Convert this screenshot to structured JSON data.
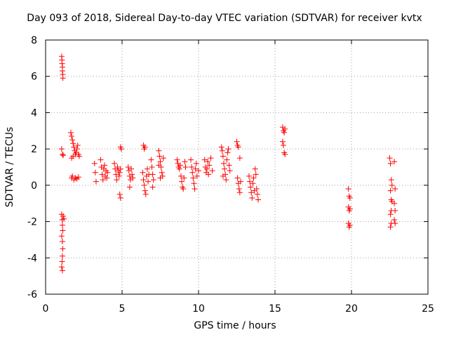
{
  "chart_data": {
    "type": "scatter",
    "title": "Day 093 of 2018, Sidereal Day-to-day VTEC variation (SDTVAR) for receiver kvtx",
    "xlabel": "GPS time / hours",
    "ylabel": "SDTVAR / TECUs",
    "xlim": [
      0,
      25
    ],
    "ylim": [
      -6,
      8
    ],
    "xticks": [
      0,
      5,
      10,
      15,
      20,
      25
    ],
    "yticks": [
      -6,
      -4,
      -2,
      0,
      2,
      4,
      6,
      8
    ],
    "xtick_labels": [
      "0",
      "5",
      "10",
      "15",
      "20",
      "25"
    ],
    "ytick_labels": [
      "-6",
      "-4",
      "-2",
      "0",
      "2",
      "4",
      "6",
      "8"
    ],
    "grid": true,
    "marker": "+",
    "series": [
      {
        "name": "SDTVAR",
        "color": "#ff0000",
        "points": [
          [
            1.05,
            7.1
          ],
          [
            1.07,
            6.9
          ],
          [
            1.08,
            6.7
          ],
          [
            1.1,
            6.5
          ],
          [
            1.1,
            6.3
          ],
          [
            1.12,
            6.1
          ],
          [
            1.13,
            5.9
          ],
          [
            1.05,
            2.0
          ],
          [
            1.1,
            1.7
          ],
          [
            1.15,
            1.65
          ],
          [
            1.05,
            -1.6
          ],
          [
            1.08,
            -1.9
          ],
          [
            1.1,
            -2.2
          ],
          [
            1.12,
            -2.5
          ],
          [
            1.05,
            -2.8
          ],
          [
            1.1,
            -3.1
          ],
          [
            1.12,
            -3.5
          ],
          [
            1.1,
            -3.9
          ],
          [
            1.08,
            -4.2
          ],
          [
            1.05,
            -4.5
          ],
          [
            1.1,
            -4.7
          ],
          [
            1.15,
            -1.7
          ],
          [
            1.2,
            -1.85
          ],
          [
            1.65,
            2.9
          ],
          [
            1.7,
            2.7
          ],
          [
            1.75,
            2.5
          ],
          [
            1.8,
            2.3
          ],
          [
            1.85,
            2.1
          ],
          [
            1.9,
            1.9
          ],
          [
            1.95,
            1.7
          ],
          [
            2.0,
            1.8
          ],
          [
            2.05,
            2.0
          ],
          [
            2.1,
            2.2
          ],
          [
            2.15,
            1.7
          ],
          [
            2.2,
            1.6
          ],
          [
            1.7,
            1.5
          ],
          [
            1.8,
            1.6
          ],
          [
            1.75,
            0.5
          ],
          [
            1.85,
            0.3
          ],
          [
            1.95,
            0.4
          ],
          [
            2.05,
            0.35
          ],
          [
            2.15,
            0.45
          ],
          [
            1.7,
            0.4
          ],
          [
            3.2,
            1.2
          ],
          [
            3.25,
            0.7
          ],
          [
            3.3,
            0.2
          ],
          [
            3.6,
            1.4
          ],
          [
            3.65,
            1.0
          ],
          [
            3.7,
            0.6
          ],
          [
            3.75,
            0.3
          ],
          [
            3.8,
            0.9
          ],
          [
            3.85,
            1.1
          ],
          [
            3.9,
            0.5
          ],
          [
            3.95,
            0.8
          ],
          [
            4.0,
            0.4
          ],
          [
            4.05,
            0.7
          ],
          [
            4.5,
            1.2
          ],
          [
            4.55,
            0.9
          ],
          [
            4.6,
            0.6
          ],
          [
            4.65,
            0.3
          ],
          [
            4.7,
            1.0
          ],
          [
            4.75,
            0.8
          ],
          [
            4.8,
            0.5
          ],
          [
            4.85,
            0.7
          ],
          [
            4.9,
            0.9
          ],
          [
            4.9,
            2.1
          ],
          [
            4.95,
            2.0
          ],
          [
            4.85,
            -0.5
          ],
          [
            4.9,
            -0.7
          ],
          [
            5.4,
            1.0
          ],
          [
            5.45,
            0.8
          ],
          [
            5.5,
            0.5
          ],
          [
            5.55,
            0.3
          ],
          [
            5.6,
            0.9
          ],
          [
            5.65,
            0.6
          ],
          [
            5.7,
            0.4
          ],
          [
            5.5,
            -0.1
          ],
          [
            6.4,
            2.2
          ],
          [
            6.45,
            2.0
          ],
          [
            6.5,
            2.1
          ],
          [
            6.35,
            0.7
          ],
          [
            6.4,
            0.3
          ],
          [
            6.45,
            0.0
          ],
          [
            6.5,
            -0.3
          ],
          [
            6.55,
            -0.5
          ],
          [
            6.6,
            0.5
          ],
          [
            6.65,
            0.9
          ],
          [
            6.7,
            0.2
          ],
          [
            6.75,
            0.6
          ],
          [
            6.9,
            1.4
          ],
          [
            6.95,
            1.0
          ],
          [
            7.0,
            0.6
          ],
          [
            7.05,
            0.3
          ],
          [
            7.0,
            -0.1
          ],
          [
            7.4,
            1.9
          ],
          [
            7.45,
            1.6
          ],
          [
            7.5,
            1.3
          ],
          [
            7.55,
            1.0
          ],
          [
            7.6,
            0.7
          ],
          [
            7.65,
            0.5
          ],
          [
            7.5,
            0.4
          ],
          [
            7.4,
            1.1
          ],
          [
            7.7,
            1.5
          ],
          [
            8.6,
            1.4
          ],
          [
            8.65,
            1.2
          ],
          [
            8.7,
            1.0
          ],
          [
            8.75,
            0.9
          ],
          [
            8.8,
            1.1
          ],
          [
            8.85,
            0.5
          ],
          [
            8.9,
            0.2
          ],
          [
            8.95,
            -0.1
          ],
          [
            9.0,
            -0.2
          ],
          [
            9.05,
            0.4
          ],
          [
            9.1,
            1.3
          ],
          [
            9.15,
            1.0
          ],
          [
            9.5,
            1.4
          ],
          [
            9.55,
            1.0
          ],
          [
            9.6,
            0.7
          ],
          [
            9.65,
            0.4
          ],
          [
            9.7,
            0.1
          ],
          [
            9.75,
            -0.2
          ],
          [
            9.8,
            0.9
          ],
          [
            9.85,
            1.2
          ],
          [
            9.9,
            0.5
          ],
          [
            10.0,
            0.8
          ],
          [
            10.4,
            1.4
          ],
          [
            10.45,
            1.0
          ],
          [
            10.5,
            0.7
          ],
          [
            10.55,
            0.9
          ],
          [
            10.6,
            1.3
          ],
          [
            10.65,
            0.6
          ],
          [
            10.7,
            1.1
          ],
          [
            10.8,
            1.5
          ],
          [
            10.9,
            0.8
          ],
          [
            11.5,
            2.1
          ],
          [
            11.55,
            1.9
          ],
          [
            11.6,
            1.6
          ],
          [
            11.65,
            1.2
          ],
          [
            11.7,
            0.9
          ],
          [
            11.75,
            0.6
          ],
          [
            11.8,
            0.3
          ],
          [
            11.85,
            1.4
          ],
          [
            11.9,
            1.8
          ],
          [
            11.95,
            2.0
          ],
          [
            12.0,
            1.1
          ],
          [
            12.05,
            0.8
          ],
          [
            11.6,
            0.5
          ],
          [
            12.5,
            2.4
          ],
          [
            12.55,
            2.2
          ],
          [
            12.6,
            2.1
          ],
          [
            12.55,
            0.4
          ],
          [
            12.6,
            0.1
          ],
          [
            12.65,
            -0.2
          ],
          [
            12.7,
            -0.4
          ],
          [
            12.75,
            0.2
          ],
          [
            12.7,
            1.5
          ],
          [
            13.3,
            0.5
          ],
          [
            13.35,
            0.2
          ],
          [
            13.4,
            -0.1
          ],
          [
            13.45,
            -0.4
          ],
          [
            13.5,
            -0.7
          ],
          [
            13.55,
            0.1
          ],
          [
            13.6,
            0.4
          ],
          [
            13.65,
            -0.3
          ],
          [
            13.7,
            0.9
          ],
          [
            13.75,
            0.6
          ],
          [
            13.8,
            -0.2
          ],
          [
            13.85,
            -0.5
          ],
          [
            13.9,
            -0.8
          ],
          [
            15.5,
            3.2
          ],
          [
            15.55,
            3.0
          ],
          [
            15.6,
            2.9
          ],
          [
            15.65,
            3.1
          ],
          [
            15.5,
            2.4
          ],
          [
            15.55,
            2.2
          ],
          [
            15.6,
            1.8
          ],
          [
            15.65,
            1.7
          ],
          [
            19.8,
            -0.2
          ],
          [
            19.85,
            -0.6
          ],
          [
            19.9,
            -0.7
          ],
          [
            19.8,
            -1.2
          ],
          [
            19.85,
            -1.4
          ],
          [
            19.9,
            -1.3
          ],
          [
            19.8,
            -2.1
          ],
          [
            19.85,
            -2.3
          ],
          [
            19.9,
            -2.2
          ],
          [
            22.5,
            1.5
          ],
          [
            22.55,
            1.2
          ],
          [
            22.6,
            0.3
          ],
          [
            22.65,
            0.0
          ],
          [
            22.55,
            -0.3
          ],
          [
            22.6,
            -0.8
          ],
          [
            22.65,
            -0.9
          ],
          [
            22.6,
            -1.4
          ],
          [
            22.55,
            -1.6
          ],
          [
            22.6,
            -2.1
          ],
          [
            22.55,
            -2.3
          ],
          [
            22.8,
            1.3
          ],
          [
            22.85,
            -0.2
          ],
          [
            22.8,
            -1.0
          ],
          [
            22.85,
            -1.4
          ],
          [
            22.8,
            -1.9
          ],
          [
            22.85,
            -2.1
          ]
        ]
      }
    ]
  }
}
